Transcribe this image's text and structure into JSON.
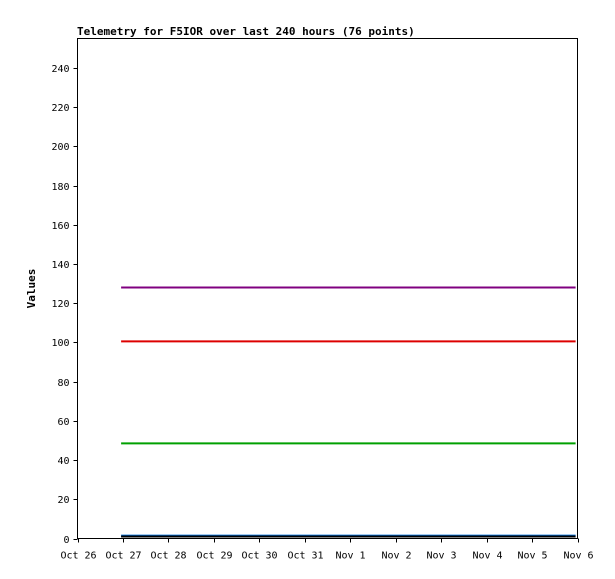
{
  "chart_data": {
    "type": "line",
    "title": "Telemetry for F5IOR over last 240 hours (76 points)",
    "xlabel": "",
    "ylabel": "Values",
    "x_axis": {
      "type": "date",
      "range": [
        "2023-10-26",
        "2023-11-06"
      ],
      "ticks": [
        {
          "date": "2023-10-26",
          "label": "Oct 26"
        },
        {
          "date": "2023-10-27",
          "label": "Oct 27"
        },
        {
          "date": "2023-10-28",
          "label": "Oct 28"
        },
        {
          "date": "2023-10-29",
          "label": "Oct 29"
        },
        {
          "date": "2023-10-30",
          "label": "Oct 30"
        },
        {
          "date": "2023-10-31",
          "label": "Oct 31"
        },
        {
          "date": "2023-11-01",
          "label": "Nov 1"
        },
        {
          "date": "2023-11-02",
          "label": "Nov 2"
        },
        {
          "date": "2023-11-03",
          "label": "Nov 3"
        },
        {
          "date": "2023-11-04",
          "label": "Nov 4"
        },
        {
          "date": "2023-11-05",
          "label": "Nov 5"
        },
        {
          "date": "2023-11-06",
          "label": "Nov 6"
        }
      ]
    },
    "y_axis": {
      "range": [
        0,
        255
      ],
      "ticks": [
        0,
        20,
        40,
        60,
        80,
        100,
        120,
        140,
        160,
        180,
        200,
        220,
        240
      ]
    },
    "grid": false,
    "legend": "none",
    "series": [
      {
        "color": "#800080",
        "x": [
          "2023-10-26T23:00",
          "2023-11-05T23:00"
        ],
        "values": [
          128,
          128
        ]
      },
      {
        "color": "#dd0000",
        "x": [
          "2023-10-26T23:00",
          "2023-11-05T23:00"
        ],
        "values": [
          100.5,
          100.5
        ]
      },
      {
        "color": "#00a000",
        "x": [
          "2023-10-26T23:00",
          "2023-11-05T23:00"
        ],
        "values": [
          48.5,
          48.5
        ]
      },
      {
        "color": "#0070dd",
        "x": [
          "2023-10-26T23:00",
          "2023-11-05T23:00"
        ],
        "values": [
          1.5,
          1.5
        ]
      },
      {
        "color": "#000000",
        "x": [
          "2023-10-26T23:00",
          "2023-11-05T23:00"
        ],
        "values": [
          1,
          1
        ]
      }
    ]
  }
}
